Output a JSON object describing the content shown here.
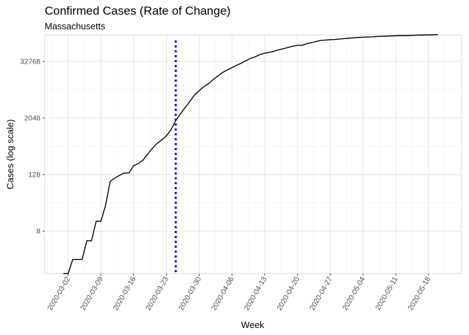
{
  "chart_data": {
    "type": "line",
    "title": "Confirmed Cases (Rate of Change)",
    "subtitle": "Massachusetts",
    "xlabel": "Week",
    "ylabel": "Cases (log scale)",
    "y_scale": "log2",
    "ylim": [
      1,
      120000
    ],
    "xlim": [
      "2020-02-26",
      "2020-05-25"
    ],
    "grid": true,
    "x_ticks": [
      "2020-03-02",
      "2020-03-09",
      "2020-03-16",
      "2020-03-23",
      "2020-03-30",
      "2020-04-06",
      "2020-04-13",
      "2020-04-20",
      "2020-04-27",
      "2020-05-04",
      "2020-05-11",
      "2020-05-18"
    ],
    "y_ticks": [
      8,
      128,
      2048,
      32768
    ],
    "vline": {
      "x": "2020-03-25",
      "color": "#0000ff",
      "style": "dotted"
    },
    "line_color": "#000000",
    "series": [
      {
        "points": [
          [
            "2020-03-01",
            1
          ],
          [
            "2020-03-02",
            1
          ],
          [
            "2020-03-03",
            2
          ],
          [
            "2020-03-04",
            2
          ],
          [
            "2020-03-05",
            2
          ],
          [
            "2020-03-06",
            5
          ],
          [
            "2020-03-07",
            5
          ],
          [
            "2020-03-08",
            13
          ],
          [
            "2020-03-09",
            13
          ],
          [
            "2020-03-10",
            28
          ],
          [
            "2020-03-11",
            92
          ],
          [
            "2020-03-12",
            108
          ],
          [
            "2020-03-13",
            123
          ],
          [
            "2020-03-14",
            138
          ],
          [
            "2020-03-15",
            138
          ],
          [
            "2020-03-16",
            197
          ],
          [
            "2020-03-17",
            220
          ],
          [
            "2020-03-18",
            260
          ],
          [
            "2020-03-19",
            350
          ],
          [
            "2020-03-20",
            460
          ],
          [
            "2020-03-21",
            590
          ],
          [
            "2020-03-22",
            700
          ],
          [
            "2020-03-23",
            850
          ],
          [
            "2020-03-24",
            1160
          ],
          [
            "2020-03-25",
            1800
          ],
          [
            "2020-03-26",
            2500
          ],
          [
            "2020-03-27",
            3400
          ],
          [
            "2020-03-28",
            4600
          ],
          [
            "2020-03-29",
            6300
          ],
          [
            "2020-03-30",
            7800
          ],
          [
            "2020-03-31",
            9500
          ],
          [
            "2020-04-01",
            11000
          ],
          [
            "2020-04-02",
            13500
          ],
          [
            "2020-04-03",
            16000
          ],
          [
            "2020-04-04",
            19000
          ],
          [
            "2020-04-05",
            21500
          ],
          [
            "2020-04-06",
            24000
          ],
          [
            "2020-04-07",
            27000
          ],
          [
            "2020-04-08",
            30000
          ],
          [
            "2020-04-09",
            34000
          ],
          [
            "2020-04-10",
            38000
          ],
          [
            "2020-04-11",
            41000
          ],
          [
            "2020-04-12",
            46000
          ],
          [
            "2020-04-13",
            49000
          ],
          [
            "2020-04-14",
            51000
          ],
          [
            "2020-04-15",
            54000
          ],
          [
            "2020-04-16",
            58000
          ],
          [
            "2020-04-17",
            61000
          ],
          [
            "2020-04-18",
            65000
          ],
          [
            "2020-04-19",
            69000
          ],
          [
            "2020-04-20",
            72000
          ],
          [
            "2020-04-21",
            72000
          ],
          [
            "2020-04-22",
            78000
          ],
          [
            "2020-04-23",
            82000
          ],
          [
            "2020-04-24",
            87000
          ],
          [
            "2020-04-25",
            92000
          ],
          [
            "2020-04-26",
            93000
          ],
          [
            "2020-04-27",
            95000
          ],
          [
            "2020-04-28",
            96000
          ],
          [
            "2020-04-29",
            98000
          ],
          [
            "2020-04-30",
            100000
          ],
          [
            "2020-05-01",
            102000
          ],
          [
            "2020-05-02",
            104000
          ],
          [
            "2020-05-03",
            106000
          ],
          [
            "2020-05-04",
            107000
          ],
          [
            "2020-05-05",
            108000
          ],
          [
            "2020-05-06",
            109000
          ],
          [
            "2020-05-07",
            111000
          ],
          [
            "2020-05-08",
            112000
          ],
          [
            "2020-05-09",
            113000
          ],
          [
            "2020-05-10",
            114000
          ],
          [
            "2020-05-11",
            115000
          ],
          [
            "2020-05-12",
            116000
          ],
          [
            "2020-05-13",
            116000
          ],
          [
            "2020-05-14",
            117000
          ],
          [
            "2020-05-15",
            118000
          ],
          [
            "2020-05-16",
            119000
          ],
          [
            "2020-05-17",
            119500
          ],
          [
            "2020-05-18",
            120000
          ],
          [
            "2020-05-19",
            120500
          ],
          [
            "2020-05-20",
            121000
          ]
        ]
      }
    ]
  }
}
